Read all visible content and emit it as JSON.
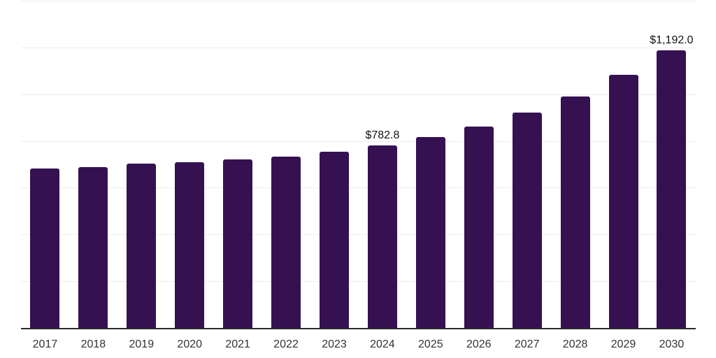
{
  "chart": {
    "colors": {
      "bar": "#361151",
      "gridline": "#ededed",
      "axis": "#2b2b2b",
      "x_label": "#333333",
      "value_label": "#111111",
      "background": "#ffffff"
    }
  },
  "chart_data": {
    "type": "bar",
    "title": "",
    "xlabel": "",
    "ylabel": "",
    "categories": [
      "2017",
      "2018",
      "2019",
      "2020",
      "2021",
      "2022",
      "2023",
      "2024",
      "2025",
      "2026",
      "2027",
      "2028",
      "2029",
      "2030"
    ],
    "values": [
      684,
      691,
      706,
      713,
      724,
      735,
      757,
      782.8,
      819,
      866,
      923,
      994,
      1086,
      1192.0
    ],
    "data_labels": {
      "2024": "$782.8",
      "2030": "$1,192.0"
    },
    "ylim": [
      0,
      1400
    ],
    "gridline_step": 200,
    "grid": true,
    "legend": false,
    "y_axis_labels_visible": false
  }
}
